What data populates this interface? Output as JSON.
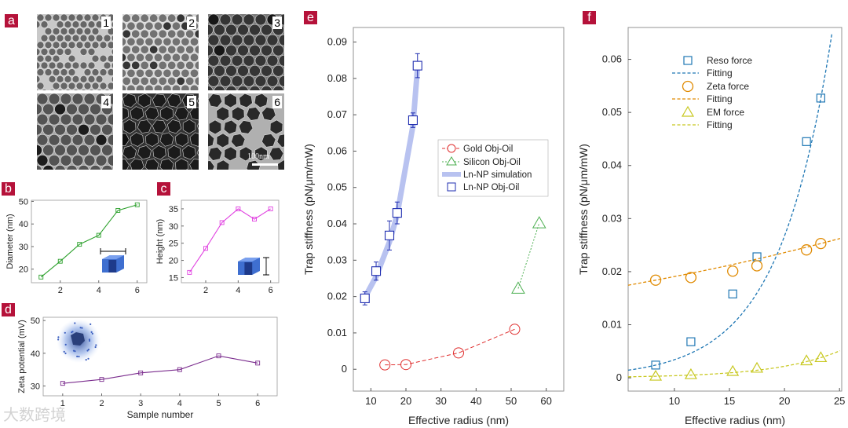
{
  "panel_letters": {
    "a": "a",
    "b": "b",
    "c": "c",
    "d": "d",
    "e": "e",
    "f": "f"
  },
  "tem": {
    "samples": [
      "1",
      "2",
      "3",
      "4",
      "5",
      "6"
    ],
    "scale_bar": "100nm"
  },
  "colors": {
    "accent": "#b5123a",
    "green": "#2ca02c",
    "magenta": "#e040e0",
    "purple": "#7b2d8e",
    "navy": "#1f2db0",
    "red": "#e03030",
    "silicon": "#4caf50",
    "sim": "#b8c2f0",
    "blue": "#1f77b4",
    "orange": "#e08a00",
    "olive": "#c8c820"
  },
  "watermark": "大数跨境",
  "chart_data": [
    {
      "id": "b",
      "type": "line",
      "ylabel": "Diameter (nm)",
      "xlabel": "",
      "x": [
        1,
        2,
        3,
        4,
        5,
        6
      ],
      "values": [
        16.5,
        23.5,
        31,
        35,
        46,
        48.5
      ],
      "xticks": [
        2,
        4,
        6
      ],
      "yticks": [
        20,
        30,
        40,
        50
      ],
      "xlim": [
        0.5,
        6.5
      ],
      "ylim": [
        14,
        50.5
      ]
    },
    {
      "id": "c",
      "type": "line",
      "ylabel": "Height (nm)",
      "xlabel": "",
      "x": [
        1,
        2,
        3,
        4,
        5,
        6
      ],
      "values": [
        16.5,
        23.5,
        31,
        35,
        32,
        35
      ],
      "xticks": [
        2,
        4,
        6
      ],
      "yticks": [
        15,
        20,
        25,
        30,
        35
      ],
      "xlim": [
        0.5,
        6.5
      ],
      "ylim": [
        13.5,
        37.5
      ]
    },
    {
      "id": "d",
      "type": "line",
      "ylabel": "Zeta potential (mV)",
      "xlabel": "Sample number",
      "x": [
        1,
        2,
        3,
        4,
        5,
        6
      ],
      "values": [
        30.8,
        32,
        34,
        35,
        39.2,
        37
      ],
      "xticks": [
        1,
        2,
        3,
        4,
        5,
        6
      ],
      "yticks": [
        30,
        40,
        50
      ],
      "xlim": [
        0.5,
        6.5
      ],
      "ylim": [
        27,
        51
      ]
    },
    {
      "id": "e",
      "type": "scatter",
      "ylabel": "Trap stiffness (pN/μm/mW)",
      "xlabel": "Effective radius (nm)",
      "xticks": [
        10,
        20,
        30,
        40,
        50,
        60
      ],
      "yticks": [
        0,
        0.01,
        0.02,
        0.03,
        0.04,
        0.05,
        0.06,
        0.07,
        0.08,
        0.09
      ],
      "ytick_labels": [
        "0",
        "0.01",
        "0.02",
        "0.03",
        "0.04",
        "0.05",
        "0.06",
        "0.07",
        "0.08",
        "0.09"
      ],
      "xlim": [
        5,
        65
      ],
      "ylim": [
        -0.006,
        0.094
      ],
      "series": [
        {
          "name": "Gold Obj-Oil",
          "x": [
            14,
            20,
            35,
            51
          ],
          "values": [
            0.0012,
            0.0013,
            0.0045,
            0.011
          ]
        },
        {
          "name": "Silicon Obj-Oil",
          "x": [
            52,
            58
          ],
          "values": [
            0.0222,
            0.0402
          ]
        },
        {
          "name": "Ln-NP simulation",
          "x": [
            8.3,
            11.5,
            15.3,
            17.5,
            22,
            23.3
          ],
          "values": [
            0.0198,
            0.0255,
            0.035,
            0.0425,
            0.067,
            0.083
          ]
        },
        {
          "name": "Ln-NP Obj-Oil",
          "x": [
            8.3,
            11.5,
            15.3,
            17.5,
            22,
            23.3
          ],
          "values": [
            0.0195,
            0.027,
            0.0368,
            0.043,
            0.0685,
            0.0835
          ],
          "errors": [
            0.0018,
            0.0025,
            0.004,
            0.003,
            0.002,
            0.0033
          ]
        }
      ]
    },
    {
      "id": "f",
      "type": "scatter",
      "ylabel": "Trap stiffness (pN/μm/mW)",
      "xlabel": "Effective radius (nm)",
      "xticks": [
        10,
        15,
        20,
        25
      ],
      "yticks": [
        0,
        0.01,
        0.02,
        0.03,
        0.04,
        0.05,
        0.06
      ],
      "ytick_labels": [
        "0",
        "0.01",
        "0.02",
        "0.03",
        "0.04",
        "0.05",
        "0.06"
      ],
      "xlim": [
        5.8,
        25.2
      ],
      "ylim": [
        -0.0025,
        0.066
      ],
      "series": [
        {
          "name": "Reso force",
          "x": [
            8.3,
            11.5,
            15.3,
            17.5,
            22,
            23.3
          ],
          "values": [
            0.0024,
            0.0068,
            0.0158,
            0.0228,
            0.0445,
            0.0527
          ]
        },
        {
          "name": "Fitting",
          "values": []
        },
        {
          "name": "Zeta force",
          "x": [
            8.3,
            11.5,
            15.3,
            17.5,
            22,
            23.3
          ],
          "values": [
            0.0184,
            0.0189,
            0.0201,
            0.0211,
            0.0241,
            0.0253
          ]
        },
        {
          "name": "Fitting",
          "values": []
        },
        {
          "name": "EM force",
          "x": [
            8.3,
            11.5,
            15.3,
            17.5,
            22,
            23.3
          ],
          "values": [
            0.0003,
            0.0006,
            0.0012,
            0.0018,
            0.0032,
            0.0038
          ]
        },
        {
          "name": "Fitting",
          "values": []
        }
      ]
    }
  ]
}
